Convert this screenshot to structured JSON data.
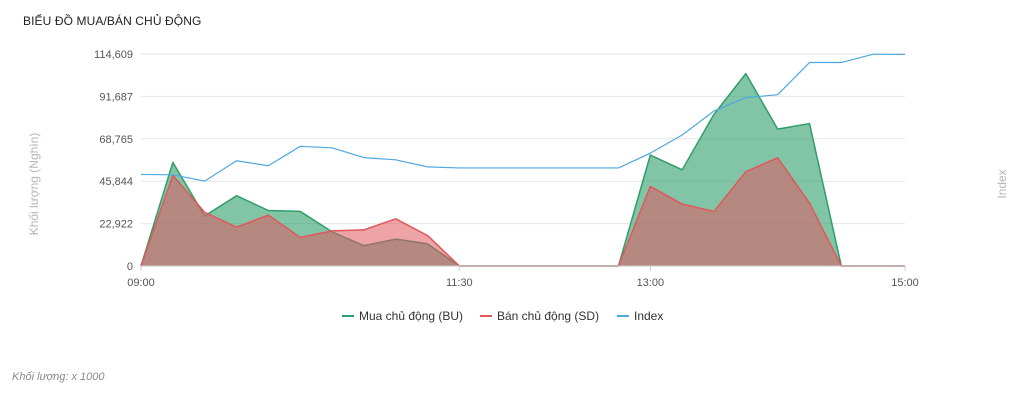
{
  "title": "BIỂU ĐỒ MUA/BÁN CHỦ ĐỘNG",
  "footnote": "Khối lượng: x 1000",
  "chart_data": {
    "type": "area",
    "ylabel": "Khối lượng (Nghìn)",
    "y2label": "Index",
    "ylim": [
      0,
      114609
    ],
    "yticks": [
      "114,609",
      "91,687",
      "68,765",
      "45,844",
      "22,922",
      "0"
    ],
    "ytick_values": [
      114609,
      91687,
      68765,
      45844,
      22922,
      0
    ],
    "x_ticks": [
      "09:00",
      "11:30",
      "13:00",
      "15:00"
    ],
    "x_tick_positions": [
      0,
      10,
      16,
      24
    ],
    "grid": "horizontal",
    "legend_position": "bottom",
    "series": [
      {
        "name": "Mua chủ động (BU)",
        "color": "#2e9e6a",
        "x": [
          0,
          1,
          2,
          3,
          4,
          5,
          6,
          7,
          8,
          9,
          10,
          11,
          12,
          13,
          14,
          15,
          16,
          17,
          18,
          19,
          20,
          21,
          22,
          23,
          24
        ],
        "values": [
          0,
          56000,
          27000,
          38000,
          30000,
          29500,
          18500,
          11000,
          14500,
          12000,
          0,
          0,
          0,
          0,
          0,
          0,
          60000,
          52000,
          82000,
          104000,
          74000,
          77000,
          0,
          0,
          0
        ]
      },
      {
        "name": "Bán chủ động (SD)",
        "color": "#e0575e",
        "x": [
          0,
          1,
          2,
          3,
          4,
          5,
          6,
          7,
          8,
          9,
          10,
          11,
          12,
          13,
          14,
          15,
          16,
          17,
          18,
          19,
          20,
          21,
          22,
          23,
          24
        ],
        "values": [
          0,
          49000,
          29000,
          21000,
          27500,
          15500,
          19000,
          19500,
          25500,
          16500,
          0,
          0,
          0,
          0,
          0,
          0,
          43000,
          33500,
          29500,
          51000,
          58500,
          34000,
          0,
          0,
          0
        ]
      },
      {
        "name": "Index",
        "color": "#4ea7e0",
        "x": [
          0,
          1,
          2,
          3,
          4,
          5,
          6,
          7,
          8,
          9,
          10,
          11,
          12,
          13,
          14,
          15,
          16,
          17,
          18,
          19,
          20,
          21,
          22,
          23,
          24
        ],
        "values": [
          49500,
          49300,
          45900,
          56900,
          54200,
          64700,
          63900,
          58600,
          57400,
          53600,
          53000,
          53000,
          53000,
          53000,
          53000,
          53000,
          61000,
          70800,
          83800,
          91000,
          92600,
          110000,
          110000,
          114500,
          114400
        ]
      }
    ]
  }
}
